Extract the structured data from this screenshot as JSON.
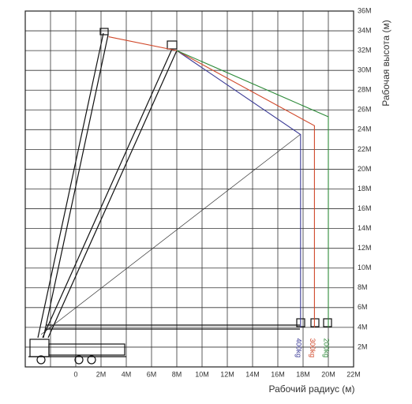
{
  "chart_data": {
    "type": "line",
    "x_label": "Рабочий радиус (м)",
    "y_label": "Рабочая высота (м)",
    "xlim": [
      -4,
      22
    ],
    "ylim": [
      0,
      36
    ],
    "xticks": [
      {
        "value": -2,
        "label": null
      },
      0,
      {
        "value": 2,
        "label": "2M"
      },
      {
        "value": 4,
        "label": "4M"
      },
      {
        "value": 6,
        "label": "6M"
      },
      {
        "value": 8,
        "label": "8M"
      },
      {
        "value": 10,
        "label": "10M"
      },
      {
        "value": 12,
        "label": "12M"
      },
      {
        "value": 14,
        "label": "14M"
      },
      {
        "value": 16,
        "label": "16M"
      },
      {
        "value": 18,
        "label": "18M"
      },
      {
        "value": 20,
        "label": "20M"
      },
      {
        "value": 22,
        "label": "22M"
      }
    ],
    "yticks": [
      {
        "value": 2,
        "label": "2M"
      },
      {
        "value": 4,
        "label": "4M"
      },
      {
        "value": 6,
        "label": "6M"
      },
      {
        "value": 8,
        "label": "8M"
      },
      {
        "value": 10,
        "label": "10M"
      },
      {
        "value": 12,
        "label": "12M"
      },
      {
        "value": 14,
        "label": "14M"
      },
      {
        "value": 16,
        "label": "16M"
      },
      {
        "value": 18,
        "label": "18M"
      },
      {
        "value": 20,
        "label": "20M"
      },
      {
        "value": 22,
        "label": "22M"
      },
      {
        "value": 24,
        "label": "24M"
      },
      {
        "value": 26,
        "label": "26M"
      },
      {
        "value": 28,
        "label": "28M"
      },
      {
        "value": 30,
        "label": "30M"
      },
      {
        "value": 32,
        "label": "32M"
      },
      {
        "value": 34,
        "label": "34M"
      },
      {
        "value": 36,
        "label": "36M"
      }
    ],
    "grid": true,
    "series": [
      {
        "name": "400kg",
        "color": "#3a3a96",
        "x": [
          8,
          17.8,
          17.8
        ],
        "values": [
          32,
          23.5,
          4
        ]
      },
      {
        "name": "300kg",
        "color": "#d0482a",
        "x": [
          2.6,
          8,
          18.9,
          18.9
        ],
        "values": [
          33.4,
          32,
          24.4,
          4
        ]
      },
      {
        "name": "200kg",
        "color": "#2e8b3a",
        "x": [
          8,
          20,
          20
        ],
        "values": [
          32,
          25.3,
          4
        ]
      }
    ]
  }
}
